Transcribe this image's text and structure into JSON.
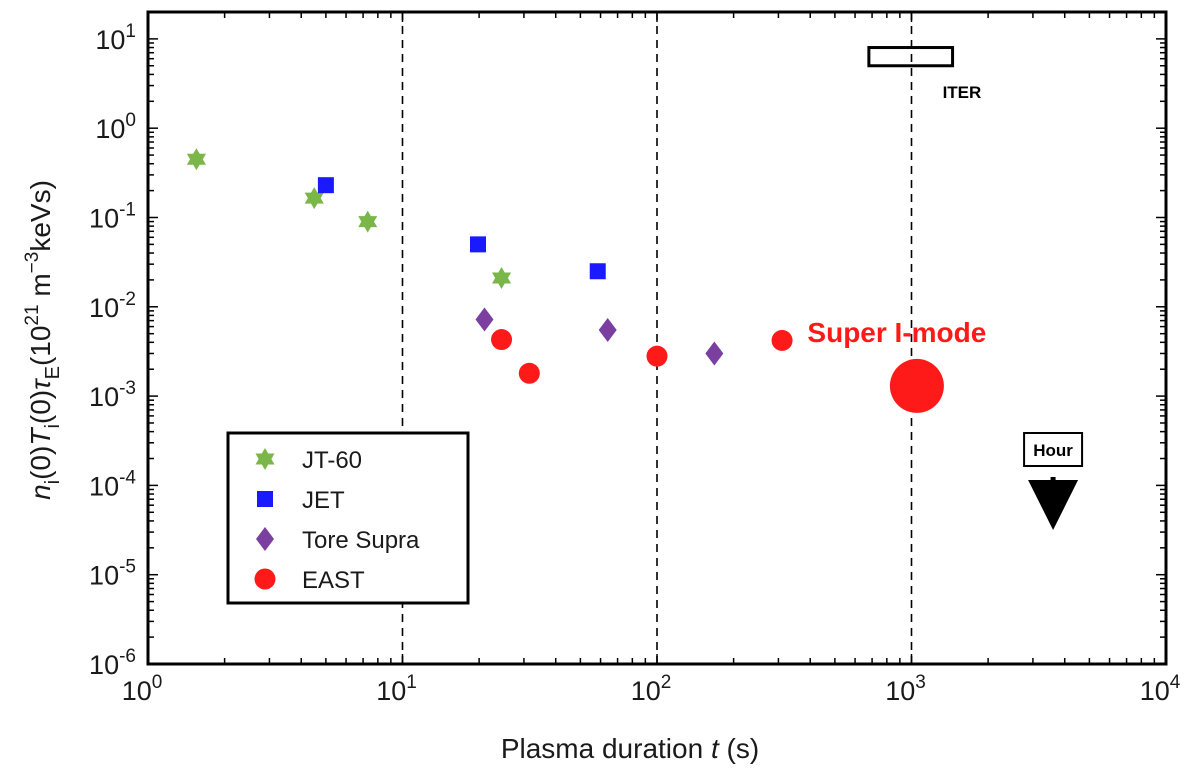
{
  "chart_data": {
    "type": "scatter",
    "title": "",
    "xlabel_main": "Plasma duration ",
    "xlabel_var": "t",
    "xlabel_unit": " (s)",
    "ylabel_parts": {
      "n": "n",
      "i_sub": "i",
      "zero1": "(0)",
      "T": "T",
      "i_sub2": "i",
      "zero2": "(0)",
      "tau": "τ",
      "E_sub": "E",
      "unit_open": "(10",
      "exp21": "21",
      "m": " m",
      "exp_neg3": "−3",
      "unit_close": "keVs)"
    },
    "x_scale": "log",
    "y_scale": "log",
    "xlim": [
      1,
      10000
    ],
    "ylim": [
      1e-06,
      20
    ],
    "x_ticks": [
      {
        "base": "10",
        "exp": "0",
        "value": 1
      },
      {
        "base": "10",
        "exp": "1",
        "value": 10
      },
      {
        "base": "10",
        "exp": "2",
        "value": 100
      },
      {
        "base": "10",
        "exp": "3",
        "value": 1000
      },
      {
        "base": "10",
        "exp": "4",
        "value": 10000
      }
    ],
    "y_ticks": [
      {
        "base": "10",
        "exp": "1",
        "value": 10
      },
      {
        "base": "10",
        "exp": "0",
        "value": 1
      },
      {
        "base": "10",
        "exp": "-1",
        "value": 0.1
      },
      {
        "base": "10",
        "exp": "-2",
        "value": 0.01
      },
      {
        "base": "10",
        "exp": "-3",
        "value": 0.001
      },
      {
        "base": "10",
        "exp": "-4",
        "value": 0.0001
      },
      {
        "base": "10",
        "exp": "-5",
        "value": 1e-05
      },
      {
        "base": "10",
        "exp": "-6",
        "value": 1e-06
      }
    ],
    "vertical_dashed_lines": [
      10,
      100,
      1000
    ],
    "series": [
      {
        "name": "JT-60",
        "marker": "hexagram",
        "color": "#7ab648",
        "points": [
          [
            1.55,
            0.45
          ],
          [
            4.5,
            0.165
          ],
          [
            7.3,
            0.09
          ],
          [
            24.5,
            0.021
          ]
        ]
      },
      {
        "name": "JET",
        "marker": "square",
        "color": "#1a1aff",
        "points": [
          [
            5.0,
            0.23
          ],
          [
            19.8,
            0.05
          ],
          [
            58.5,
            0.025
          ]
        ]
      },
      {
        "name": "Tore Supra",
        "marker": "diamond",
        "color": "#7b3fa0",
        "points": [
          [
            21.0,
            0.0072
          ],
          [
            64.0,
            0.0055
          ],
          [
            168.0,
            0.003
          ]
        ]
      },
      {
        "name": "EAST",
        "marker": "circle",
        "color": "#ff1a1a",
        "points": [
          [
            24.5,
            0.0043
          ],
          [
            31.5,
            0.0018
          ],
          [
            100.0,
            0.0028
          ],
          [
            310.0,
            0.0042
          ]
        ]
      }
    ],
    "highlight": {
      "label": "Super I-mode",
      "color": "#ff1a1a",
      "point": [
        1050,
        0.0013
      ]
    },
    "iter_box": {
      "label": "ITER",
      "x_range": [
        680,
        1450
      ],
      "y_range": [
        5,
        8
      ]
    },
    "hour_marker": {
      "label": "Hour",
      "x": 3600
    },
    "legend_position": "lower-left"
  }
}
